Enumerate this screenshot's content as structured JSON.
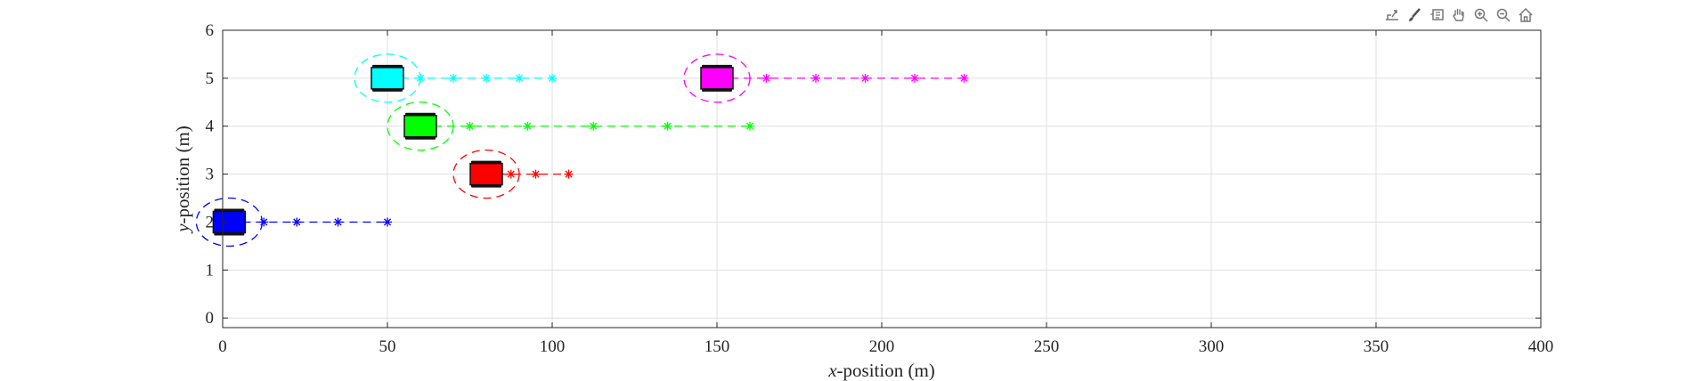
{
  "toolbar": {
    "icons": [
      "export-icon",
      "brush-icon",
      "datatip-icon",
      "pan-icon",
      "zoom-in-icon",
      "zoom-out-icon",
      "home-icon"
    ]
  },
  "chart_data": {
    "type": "scatter",
    "xlabel_italic": "x",
    "xlabel_rest": "-position (m)",
    "ylabel_italic": "y",
    "ylabel_rest": "-position (m)",
    "xlim": [
      0,
      400
    ],
    "ylim": [
      -0.2,
      6
    ],
    "xticks": [
      0,
      50,
      100,
      150,
      200,
      250,
      300,
      350,
      400
    ],
    "yticks": [
      0,
      1,
      2,
      3,
      4,
      5,
      6
    ],
    "grid": true,
    "vehicles": [
      {
        "color": "#0000ff",
        "x": 2,
        "y": 2,
        "trajectory_x": [
          2,
          12.5,
          22.5,
          35,
          50
        ],
        "trajectory_y": [
          2,
          2,
          2,
          2,
          2
        ]
      },
      {
        "color": "#ff0000",
        "x": 80,
        "y": 3,
        "trajectory_x": [
          80,
          87.5,
          95,
          105
        ],
        "trajectory_y": [
          3,
          3,
          3,
          3
        ]
      },
      {
        "color": "#00ff00",
        "x": 60,
        "y": 4,
        "trajectory_x": [
          60,
          75,
          92.5,
          112.5,
          135,
          160
        ],
        "trajectory_y": [
          4,
          4,
          4,
          4,
          4,
          4
        ]
      },
      {
        "color": "#00ffff",
        "x": 50,
        "y": 5,
        "trajectory_x": [
          50,
          60,
          70,
          80,
          90,
          100
        ],
        "trajectory_y": [
          5,
          5,
          5,
          5,
          5,
          5
        ]
      },
      {
        "color": "#ff00ff",
        "x": 150,
        "y": 5,
        "trajectory_x": [
          150,
          165,
          180,
          195,
          210,
          225
        ],
        "trajectory_y": [
          5,
          5,
          5,
          5,
          5,
          5
        ]
      }
    ]
  }
}
